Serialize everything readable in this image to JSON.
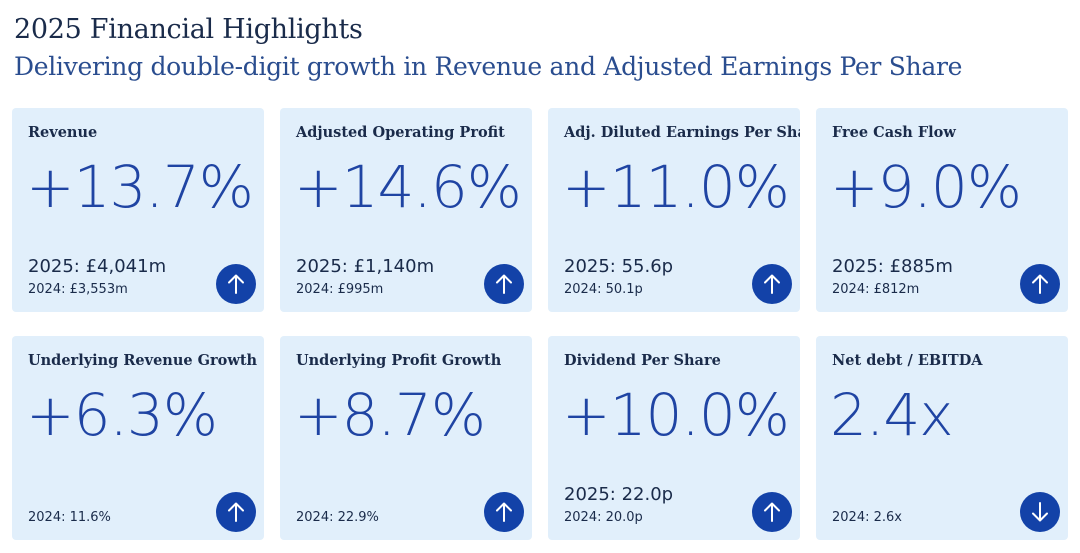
{
  "header": {
    "title": "2025 Financial Highlights",
    "subtitle": "Delivering double-digit growth in Revenue and Adjusted Earnings Per Share"
  },
  "colors": {
    "card_background": "#e1effb",
    "value_text": "#1f44a3",
    "arrow_circle": "#1342a8",
    "heading_text": "#1a2b4a"
  },
  "cards": [
    {
      "label": "Revenue",
      "value": "+13.7%",
      "current": "2025: £4,041m",
      "prior": "2024: £3,553m",
      "direction": "up",
      "icon": "arrow-up-icon"
    },
    {
      "label": "Adjusted Operating Profit",
      "value": "+14.6%",
      "current": "2025: £1,140m",
      "prior": "2024: £995m",
      "direction": "up",
      "icon": "arrow-up-icon"
    },
    {
      "label": "Adj. Diluted Earnings Per Share",
      "value": "+11.0%",
      "current": "2025: 55.6p",
      "prior": "2024: 50.1p",
      "direction": "up",
      "icon": "arrow-up-icon"
    },
    {
      "label": "Free Cash Flow",
      "value": "+9.0%",
      "current": "2025: £885m",
      "prior": "2024: £812m",
      "direction": "up",
      "icon": "arrow-up-icon"
    },
    {
      "label": "Underlying Revenue Growth",
      "value": "+6.3%",
      "current": "",
      "prior": "2024: 11.6%",
      "direction": "up",
      "icon": "arrow-up-icon"
    },
    {
      "label": "Underlying Profit Growth",
      "value": "+8.7%",
      "current": "",
      "prior": "2024: 22.9%",
      "direction": "up",
      "icon": "arrow-up-icon"
    },
    {
      "label": "Dividend Per Share",
      "value": "+10.0%",
      "current": "2025: 22.0p",
      "prior": "2024: 20.0p",
      "direction": "up",
      "icon": "arrow-up-icon"
    },
    {
      "label": "Net debt / EBITDA",
      "value": "2.4x",
      "current": "",
      "prior": "2024: 2.6x",
      "direction": "down",
      "icon": "arrow-down-icon"
    }
  ]
}
